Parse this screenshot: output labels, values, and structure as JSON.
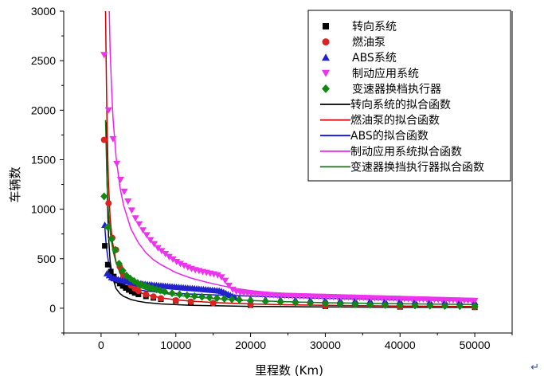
{
  "chart_data": {
    "type": "scatter",
    "title": "",
    "xlabel": "里程数 (Km)",
    "ylabel": "车辆数",
    "xlim": [
      -5000,
      55000
    ],
    "ylim": [
      -250,
      3000
    ],
    "xticks": [
      0,
      10000,
      20000,
      30000,
      40000,
      50000
    ],
    "yticks": [
      0,
      500,
      1000,
      1500,
      2000,
      2500,
      3000
    ],
    "grid": false,
    "legend_position": "top-right",
    "series": [
      {
        "name": "转向系统",
        "kind": "points",
        "marker": "square",
        "color": "#000000",
        "x": [
          500,
          900,
          1300,
          1700,
          2100,
          2500,
          2900,
          3300,
          3700,
          4100,
          4500,
          5000,
          6000,
          7000,
          8000,
          10000,
          12000,
          15000,
          20000,
          30000,
          40000,
          50000
        ],
        "y": [
          630,
          440,
          370,
          320,
          280,
          250,
          225,
          205,
          185,
          170,
          155,
          140,
          120,
          105,
          92,
          75,
          62,
          48,
          32,
          20,
          14,
          10
        ]
      },
      {
        "name": "燃油泵",
        "kind": "points",
        "marker": "circle",
        "color": "#dd2222",
        "x": [
          400,
          1000,
          1500,
          2000,
          2500,
          3000,
          3500,
          4000,
          4500,
          5000,
          6000,
          7000,
          8000,
          10000,
          12000,
          15000,
          20000,
          30000,
          40000,
          50000
        ],
        "y": [
          1700,
          1060,
          710,
          590,
          420,
          330,
          270,
          230,
          200,
          175,
          140,
          118,
          100,
          80,
          66,
          52,
          38,
          24,
          17,
          13
        ]
      },
      {
        "name": "ABS系统",
        "kind": "points",
        "marker": "triangle-up",
        "color": "#2222cc",
        "x": [
          500,
          800,
          1100,
          1400,
          1700,
          2000,
          2300,
          2600,
          2900,
          3200,
          3500,
          3800,
          4100,
          4400,
          4700,
          5000,
          5300,
          5600,
          5900,
          6200,
          6500,
          6800,
          7100,
          7400,
          7700,
          8000,
          8300,
          8600,
          8900,
          9200,
          9500,
          9800,
          10100,
          10400,
          10700,
          11000,
          11300,
          11600,
          11900,
          12200,
          12500,
          12800,
          13100,
          13400,
          13700,
          14000,
          14300,
          14600,
          14900,
          15200,
          15500,
          15800,
          16100,
          16400,
          16700,
          17000,
          17300,
          17600,
          17900,
          18500,
          20000,
          22000,
          24000,
          26000,
          28000,
          30000,
          32000,
          34000,
          36000,
          38000,
          40000,
          42000,
          44000,
          46000,
          48000,
          50000
        ],
        "y": [
          840,
          350,
          330,
          310,
          300,
          300,
          290,
          285,
          280,
          275,
          270,
          265,
          262,
          258,
          254,
          250,
          248,
          245,
          243,
          240,
          238,
          236,
          234,
          232,
          230,
          228,
          226,
          224,
          222,
          220,
          218,
          216,
          214,
          212,
          210,
          208,
          206,
          204,
          202,
          200,
          198,
          196,
          194,
          192,
          190,
          188,
          186,
          184,
          182,
          180,
          178,
          175,
          170,
          160,
          150,
          140,
          130,
          120,
          110,
          100,
          95,
          90,
          87,
          84,
          82,
          80,
          78,
          76,
          74,
          72,
          70,
          68,
          66,
          64,
          62,
          60
        ]
      },
      {
        "name": "制动应用系统",
        "kind": "points",
        "marker": "triangle-down",
        "color": "#ee33ee",
        "x": [
          400,
          1000,
          1600,
          2100,
          2600,
          3100,
          3600,
          4100,
          4600,
          5100,
          5600,
          6100,
          6600,
          7100,
          7600,
          8100,
          8600,
          9100,
          9600,
          10100,
          10600,
          11100,
          11600,
          12100,
          12600,
          13100,
          13600,
          14100,
          14600,
          15100,
          15600,
          16100,
          16600,
          17100,
          17600,
          18100,
          18600,
          19100,
          19600,
          20100,
          20600,
          21100,
          21600,
          22100,
          22600,
          23100,
          23600,
          24100,
          24600,
          25100,
          25600,
          26100,
          26600,
          27100,
          27600,
          28100,
          28600,
          29100,
          29600,
          30100,
          30600,
          31100,
          31600,
          32100,
          32600,
          33100,
          33600,
          34100,
          34600,
          35100,
          35600,
          36100,
          36600,
          37100,
          37600,
          38100,
          38600,
          39100,
          39600,
          40100,
          40600,
          41100,
          41600,
          42100,
          42600,
          43100,
          43600,
          44100,
          44600,
          45100,
          45600,
          46100,
          46600,
          47100,
          47600,
          48100,
          48600,
          49100,
          49600,
          50000
        ],
        "y": [
          2560,
          2000,
          1710,
          1460,
          1300,
          1180,
          1080,
          990,
          910,
          850,
          790,
          740,
          690,
          650,
          610,
          580,
          550,
          520,
          495,
          470,
          450,
          432,
          415,
          400,
          388,
          378,
          368,
          360,
          352,
          345,
          335,
          315,
          280,
          230,
          190,
          170,
          160,
          155,
          150,
          147,
          144,
          142,
          140,
          138,
          136,
          134,
          132,
          130,
          128,
          127,
          126,
          125,
          124,
          123,
          122,
          121,
          120,
          119,
          118,
          117,
          116,
          115,
          114,
          113,
          112,
          111,
          110,
          109,
          108,
          107,
          106,
          105,
          104,
          103,
          102,
          101,
          100,
          99,
          98,
          97,
          96,
          95,
          94,
          93,
          92,
          91,
          90,
          89,
          88,
          87,
          86,
          85,
          84,
          83,
          82,
          81,
          80,
          79,
          78,
          77
        ]
      },
      {
        "name": "变速器换档执行器",
        "kind": "points",
        "marker": "diamond",
        "color": "#118811",
        "x": [
          400,
          900,
          1400,
          1900,
          2400,
          2900,
          3400,
          3900,
          4400,
          4900,
          5400,
          5900,
          6400,
          6900,
          7400,
          7900,
          8500,
          9500,
          10500,
          11500,
          12500,
          13500,
          14500,
          15500,
          16500,
          17500,
          18500,
          20000,
          22000,
          24000,
          26000,
          28000,
          30000,
          32000,
          34000,
          36000,
          38000,
          40000,
          42000,
          44000,
          46000,
          48000,
          50000
        ],
        "y": [
          1130,
          820,
          700,
          590,
          450,
          380,
          330,
          300,
          275,
          255,
          240,
          225,
          212,
          200,
          190,
          180,
          168,
          152,
          140,
          130,
          122,
          115,
          108,
          102,
          96,
          90,
          85,
          78,
          70,
          64,
          58,
          53,
          48,
          44,
          40,
          36,
          33,
          30,
          28,
          26,
          24,
          22,
          20
        ]
      },
      {
        "name": "转向系统的拟合函数",
        "kind": "fit",
        "color": "#000000",
        "x": [
          700,
          800,
          900,
          1000,
          1200,
          1500,
          2000,
          2500,
          3000,
          4000,
          5000,
          6000,
          8000,
          10000,
          12000,
          15000,
          20000,
          25000,
          30000,
          40000,
          50000
        ],
        "y": [
          1880,
          1300,
          950,
          720,
          480,
          320,
          200,
          150,
          120,
          88,
          70,
          58,
          44,
          36,
          30,
          25,
          19,
          16,
          13,
          10,
          8
        ]
      },
      {
        "name": "燃油泵的拟合函数",
        "kind": "fit",
        "color": "#cc0000",
        "x": [
          600,
          700,
          800,
          900,
          1000,
          1200,
          1500,
          2000,
          2500,
          3000,
          4000,
          5000,
          6000,
          8000,
          10000,
          12000,
          15000,
          20000,
          25000,
          30000,
          40000,
          50000
        ],
        "y": [
          3000,
          2350,
          1850,
          1500,
          1250,
          920,
          680,
          470,
          360,
          290,
          210,
          165,
          138,
          105,
          85,
          72,
          58,
          44,
          35,
          30,
          22,
          18
        ]
      },
      {
        "name": "ABS的拟合函数",
        "kind": "fit",
        "color": "#1111cc",
        "x": [
          500,
          700,
          1000,
          1500,
          2000,
          3000,
          4000,
          5000,
          6000,
          8000,
          10000,
          12000,
          15000,
          20000,
          25000,
          30000,
          40000,
          50000
        ],
        "y": [
          820,
          620,
          460,
          340,
          280,
          225,
          200,
          185,
          175,
          160,
          150,
          143,
          135,
          122,
          110,
          100,
          85,
          75
        ]
      },
      {
        "name": "制动应用系统拟合函数",
        "kind": "fit",
        "color": "#ee22ee",
        "x": [
          1100,
          1200,
          1400,
          1600,
          2000,
          2500,
          3000,
          4000,
          5000,
          6000,
          7000,
          8000,
          10000,
          12000,
          14000,
          16000,
          18000,
          20000,
          25000,
          30000,
          40000,
          50000
        ],
        "y": [
          3000,
          2620,
          2220,
          1920,
          1530,
          1230,
          1040,
          800,
          660,
          560,
          490,
          440,
          360,
          305,
          265,
          230,
          200,
          178,
          140,
          118,
          90,
          72
        ]
      },
      {
        "name": "变速器换挡执行器拟合函数",
        "kind": "fit",
        "color": "#117711",
        "x": [
          600,
          800,
          1000,
          1300,
          1600,
          2000,
          2500,
          3000,
          4000,
          5000,
          6000,
          8000,
          10000,
          12000,
          15000,
          20000,
          25000,
          30000,
          40000,
          50000
        ],
        "y": [
          1900,
          1250,
          950,
          720,
          580,
          460,
          370,
          320,
          255,
          215,
          190,
          155,
          132,
          115,
          98,
          78,
          65,
          56,
          45,
          38
        ]
      }
    ]
  },
  "return_symbol": "↵"
}
